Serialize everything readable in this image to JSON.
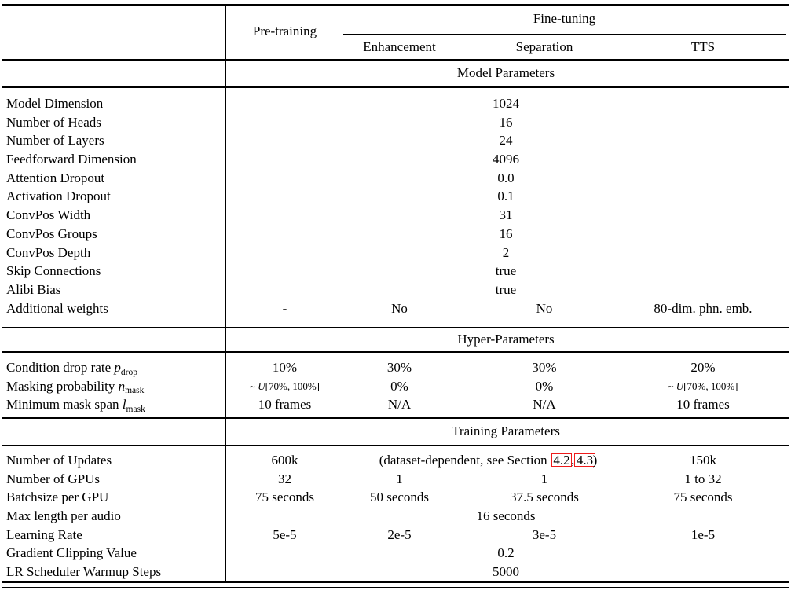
{
  "header": {
    "pretraining": "Pre-training",
    "finetuning": "Fine-tuning",
    "subcolumns": [
      "Enhancement",
      "Separation",
      "TTS"
    ]
  },
  "colors": {
    "text": "#000000",
    "rule": "#000000",
    "link_box_red": "#ee1b1b"
  },
  "sections": [
    {
      "title": "Model Parameters",
      "rows": [
        {
          "label": "Model Dimension",
          "span_all": "1024"
        },
        {
          "label": "Number of Heads",
          "span_all": "16"
        },
        {
          "label": "Number of Layers",
          "span_all": "24"
        },
        {
          "label": "Feedforward Dimension",
          "span_all": "4096"
        },
        {
          "label": "Attention Dropout",
          "span_all": "0.0"
        },
        {
          "label": "Activation Dropout",
          "span_all": "0.1"
        },
        {
          "label": "ConvPos Width",
          "span_all": "31"
        },
        {
          "label": "ConvPos Groups",
          "span_all": "16"
        },
        {
          "label": "ConvPos Depth",
          "span_all": "2"
        },
        {
          "label": "Skip Connections",
          "span_all": "true"
        },
        {
          "label": "Alibi Bias",
          "span_all": "true"
        },
        {
          "label": "Additional weights",
          "cells": [
            "-",
            "No",
            "No",
            "80-dim. phn. emb."
          ]
        }
      ]
    },
    {
      "title": "Hyper-Parameters",
      "rows": [
        {
          "label": "Condition drop rate ",
          "var": "p",
          "sub": "drop",
          "cells": [
            "10%",
            "30%",
            "30%",
            "20%"
          ]
        },
        {
          "label": "Masking probability ",
          "var": "n",
          "sub": "mask",
          "cells": [
            {
              "math": {
                "pre": "~ ",
                "u": "U",
                "post": "[70%, 100%]"
              }
            },
            "0%",
            "0%",
            {
              "math": {
                "pre": "~ ",
                "u": "U",
                "post": "[70%, 100%]"
              }
            }
          ]
        },
        {
          "label": "Minimum mask span ",
          "var": "l",
          "sub": "mask",
          "cells": [
            "10 frames",
            "N/A",
            "N/A",
            "10 frames"
          ]
        }
      ]
    },
    {
      "title": "Training Parameters",
      "rows": [
        {
          "label": "Number of Updates",
          "cells": [
            "600k",
            {
              "note": {
                "prefix": "(dataset-dependent, see Section ",
                "ref1": "4.2",
                "comma": ",",
                "ref2": "4.3",
                "suffix": ")"
              }
            },
            "150k"
          ]
        },
        {
          "label": "Number of GPUs",
          "cells": [
            "32",
            "1",
            "1",
            "1 to 32"
          ]
        },
        {
          "label": "Batchsize per GPU",
          "cells": [
            "75 seconds",
            "50 seconds",
            "37.5 seconds",
            "75 seconds"
          ]
        },
        {
          "label": "Max length per audio",
          "span_all": "16 seconds"
        },
        {
          "label": "Learning Rate",
          "cells": [
            "5e-5",
            "2e-5",
            "3e-5",
            "1e-5"
          ]
        },
        {
          "label": "Gradient Clipping Value",
          "span_all": "0.2"
        },
        {
          "label": "LR Scheduler Warmup Steps",
          "span_all": "5000"
        }
      ]
    }
  ]
}
